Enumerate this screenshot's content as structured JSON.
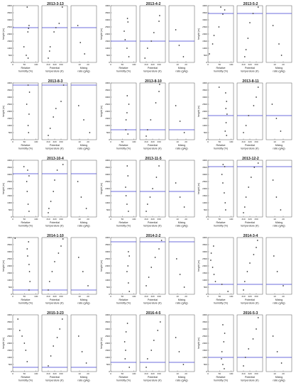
{
  "chart_data": {
    "type": "scatter",
    "colors": {
      "point": "#333333",
      "line": "#3b3bd1",
      "frame": "#555555"
    },
    "panels_per_date": [
      "Relative humidity (%)",
      "Potential temperature (K)",
      "Mixing ratio (g/kg)"
    ],
    "x_ticks": {
      "rh": {
        "values": [
          0,
          50,
          100
        ],
        "labels": [
          "0",
          "50",
          "100"
        ],
        "range": [
          0,
          110
        ]
      },
      "theta": {
        "values": [
          310,
          320,
          330
        ],
        "labels": [
          "310",
          "320",
          "330"
        ],
        "range": [
          300,
          340
        ]
      },
      "mr": {
        "values": [
          10,
          20
        ],
        "labels": [
          "10",
          "20"
        ],
        "range": [
          0,
          30
        ]
      }
    },
    "y_axis": {
      "label": "height (m)",
      "range": [
        0,
        4000
      ],
      "ticks": [
        0,
        500,
        1000,
        1500,
        2000,
        2500,
        3000,
        3500,
        4000
      ],
      "tick_labels": [
        "0",
        "500",
        "1000",
        "1500",
        "2000",
        "2500",
        "3000",
        "3500",
        "4000"
      ]
    },
    "x_titles": {
      "rh": [
        "Relative",
        "humidity (%)"
      ],
      "theta": [
        "Potential",
        "temperature (K)"
      ],
      "mr": [
        "Mixing",
        "ratio (g/kg)"
      ]
    },
    "dates": [
      {
        "date": "2013-3-13",
        "bl_height": 2450,
        "rh": [
          [
            62,
            3900
          ],
          [
            70,
            2600
          ],
          [
            68,
            2400
          ],
          [
            65,
            2150
          ],
          [
            48,
            1100
          ],
          [
            58,
            500
          ],
          [
            66,
            300
          ]
        ],
        "theta": [
          [
            332,
            3900
          ],
          [
            327,
            2750
          ],
          [
            322,
            2450
          ],
          [
            319,
            2150
          ],
          [
            313,
            1100
          ],
          [
            312,
            800
          ],
          [
            310,
            300
          ]
        ],
        "mr": [
          [
            8,
            2600
          ],
          [
            11,
            1400
          ],
          [
            16,
            600
          ]
        ]
      },
      {
        "date": "2013-4-2",
        "bl_height": 1500,
        "rh": [
          [
            72,
            3100
          ],
          [
            74,
            2850
          ],
          [
            58,
            2200
          ],
          [
            62,
            1600
          ],
          [
            70,
            1000
          ],
          [
            78,
            400
          ]
        ],
        "theta": [
          [
            331,
            3300
          ],
          [
            330,
            2900
          ],
          [
            322,
            2100
          ],
          [
            318,
            1500
          ],
          [
            312,
            1000
          ],
          [
            308,
            300
          ]
        ],
        "mr": [
          [
            8,
            2300
          ],
          [
            12,
            1200
          ],
          [
            17,
            400
          ]
        ]
      },
      {
        "date": "2013-5-2",
        "bl_height": 3450,
        "rh": [
          [
            55,
            3900
          ],
          [
            72,
            3700
          ],
          [
            64,
            3400
          ],
          [
            47,
            2500
          ],
          [
            26,
            1900
          ],
          [
            20,
            1300
          ],
          [
            6,
            600
          ]
        ],
        "theta": [
          [
            333,
            3900
          ],
          [
            325,
            3450
          ],
          [
            320,
            2800
          ],
          [
            317,
            1700
          ],
          [
            314,
            900
          ],
          [
            312,
            400
          ]
        ],
        "mr": [
          [
            8,
            2600
          ],
          [
            15,
            1300
          ],
          [
            18,
            500
          ]
        ]
      },
      {
        "date": "2013-8-3",
        "bl_height": 3850,
        "rh": [
          [
            66,
            3850
          ],
          [
            72,
            3350
          ],
          [
            60,
            2500
          ],
          [
            70,
            1800
          ],
          [
            66,
            1000
          ],
          [
            68,
            500
          ]
        ],
        "theta": [
          [
            334,
            3850
          ],
          [
            330,
            2700
          ],
          [
            322,
            2200
          ],
          [
            318,
            1600
          ],
          [
            313,
            800
          ],
          [
            310,
            300
          ]
        ],
        "mr": [
          [
            9,
            2400
          ],
          [
            15,
            1400
          ],
          [
            22,
            500
          ]
        ]
      },
      {
        "date": "2013-8-10",
        "bl_height": 700,
        "rh": [
          [
            71,
            3100
          ],
          [
            78,
            2500
          ],
          [
            70,
            1900
          ],
          [
            66,
            1400
          ],
          [
            65,
            700
          ],
          [
            74,
            400
          ]
        ],
        "theta": [
          [
            331,
            3900
          ],
          [
            330,
            3400
          ],
          [
            325,
            2600
          ],
          [
            317,
            1400
          ],
          [
            312,
            700
          ],
          [
            310,
            250
          ]
        ],
        "mr": [
          [
            8,
            2400
          ],
          [
            13,
            1300
          ],
          [
            18,
            500
          ]
        ]
      },
      {
        "date": "2013-8-11",
        "bl_height": 1700,
        "rh": [
          [
            48,
            3700
          ],
          [
            76,
            3300
          ],
          [
            80,
            2700
          ],
          [
            77,
            2200
          ],
          [
            82,
            1800
          ],
          [
            78,
            1200
          ],
          [
            74,
            600
          ],
          [
            80,
            300
          ]
        ],
        "theta": [
          [
            333,
            3700
          ],
          [
            330,
            3000
          ],
          [
            326,
            2400
          ],
          [
            318,
            1700
          ],
          [
            314,
            1000
          ],
          [
            310,
            500
          ]
        ],
        "mr": [
          [
            7,
            2500
          ],
          [
            12,
            1500
          ],
          [
            17,
            600
          ]
        ]
      },
      {
        "date": "2013-10-4",
        "bl_height": 3050,
        "rh": [
          [
            48,
            3550
          ],
          [
            64,
            3300
          ],
          [
            70,
            2900
          ],
          [
            60,
            2500
          ],
          [
            62,
            1800
          ],
          [
            66,
            900
          ],
          [
            70,
            400
          ]
        ],
        "theta": [
          [
            333,
            3700
          ],
          [
            324,
            3300
          ],
          [
            320,
            2600
          ],
          [
            318,
            1800
          ],
          [
            314,
            1100
          ],
          [
            311,
            600
          ],
          [
            310,
            300
          ]
        ],
        "mr": [
          [
            8,
            2500
          ],
          [
            12,
            1400
          ],
          [
            18,
            600
          ]
        ]
      },
      {
        "date": "2013-11-5",
        "bl_height": 1800,
        "rh": [
          [
            71,
            3600
          ],
          [
            74,
            2900
          ],
          [
            64,
            2100
          ],
          [
            66,
            1500
          ],
          [
            70,
            900
          ],
          [
            76,
            400
          ]
        ],
        "theta": [
          [
            330,
            3600
          ],
          [
            326,
            2800
          ],
          [
            320,
            2000
          ],
          [
            316,
            1400
          ],
          [
            312,
            900
          ],
          [
            310,
            400
          ]
        ],
        "mr": [
          [
            8,
            2400
          ],
          [
            13,
            1400
          ],
          [
            18,
            700
          ]
        ]
      },
      {
        "date": "2013-12-2",
        "bl_height": 3550,
        "rh": [
          [
            65,
            3700
          ],
          [
            72,
            3550
          ],
          [
            60,
            3000
          ],
          [
            64,
            2400
          ],
          [
            70,
            1700
          ],
          [
            74,
            1000
          ],
          [
            76,
            500
          ]
        ],
        "theta": [
          [
            333,
            3800
          ],
          [
            327,
            3500
          ],
          [
            322,
            2800
          ],
          [
            318,
            2100
          ],
          [
            314,
            1400
          ],
          [
            312,
            700
          ],
          [
            310,
            300
          ]
        ],
        "mr": [
          [
            8,
            2600
          ],
          [
            12,
            1400
          ],
          [
            17,
            500
          ]
        ]
      },
      {
        "date": "2014-1-10",
        "bl_height": 300,
        "rh": [
          [
            10,
            3950
          ],
          [
            68,
            3700
          ],
          [
            62,
            3200
          ],
          [
            64,
            2700
          ],
          [
            70,
            2100
          ],
          [
            72,
            1600
          ],
          [
            74,
            900
          ],
          [
            70,
            300
          ]
        ],
        "theta": [
          [
            333,
            3900
          ],
          [
            330,
            3400
          ],
          [
            326,
            2900
          ],
          [
            320,
            2300
          ],
          [
            316,
            1600
          ],
          [
            312,
            900
          ],
          [
            310,
            300
          ]
        ],
        "mr": [
          [
            9,
            2600
          ],
          [
            14,
            1600
          ],
          [
            20,
            600
          ]
        ]
      },
      {
        "date": "2014-2-2",
        "bl_height": 3700,
        "rh": [
          [
            76,
            3000
          ],
          [
            80,
            2700
          ],
          [
            74,
            2000
          ],
          [
            70,
            1600
          ],
          [
            76,
            800
          ],
          [
            80,
            200
          ]
        ],
        "theta": [
          [
            334,
            3800
          ],
          [
            330,
            3200
          ],
          [
            324,
            2600
          ],
          [
            318,
            1900
          ],
          [
            314,
            1200
          ],
          [
            310,
            600
          ]
        ],
        "mr": [
          [
            9,
            2500
          ],
          [
            13,
            1400
          ],
          [
            18,
            500
          ]
        ]
      },
      {
        "date": "2014-3-4",
        "bl_height": 700,
        "rh": [
          [
            24,
            3400
          ],
          [
            14,
            2900
          ],
          [
            12,
            2400
          ],
          [
            20,
            1900
          ],
          [
            26,
            1400
          ],
          [
            32,
            900
          ],
          [
            60,
            700
          ],
          [
            86,
            200
          ]
        ],
        "theta": [
          [
            332,
            3800
          ],
          [
            330,
            3300
          ],
          [
            326,
            2800
          ],
          [
            320,
            2200
          ],
          [
            316,
            1600
          ],
          [
            312,
            900
          ],
          [
            310,
            300
          ]
        ],
        "mr": [
          [
            9,
            2700
          ],
          [
            13,
            1600
          ],
          [
            20,
            600
          ]
        ]
      },
      {
        "date": "2015-3-23",
        "bl_height": 300,
        "rh": [
          [
            22,
            3700
          ],
          [
            30,
            2900
          ],
          [
            40,
            2500
          ],
          [
            50,
            2000
          ],
          [
            56,
            1500
          ],
          [
            62,
            700
          ]
        ],
        "theta": [
          [
            332,
            3700
          ],
          [
            328,
            3000
          ],
          [
            324,
            2400
          ],
          [
            318,
            1800
          ],
          [
            314,
            1100
          ],
          [
            310,
            400
          ]
        ],
        "mr": [
          [
            9,
            2500
          ],
          [
            13,
            1400
          ],
          [
            18,
            600
          ]
        ]
      },
      {
        "date": "2016-4-5",
        "bl_height": 650,
        "rh": [
          [
            72,
            3400
          ],
          [
            66,
            2800
          ],
          [
            60,
            2100
          ],
          [
            64,
            1500
          ],
          [
            62,
            900
          ],
          [
            80,
            300
          ]
        ],
        "theta": [
          [
            332,
            3500
          ],
          [
            328,
            2900
          ],
          [
            322,
            2200
          ],
          [
            318,
            1500
          ],
          [
            312,
            900
          ],
          [
            310,
            300
          ]
        ],
        "mr": [
          [
            8,
            2400
          ],
          [
            12,
            1400
          ],
          [
            17,
            500
          ]
        ]
      },
      {
        "date": "2016-5-3",
        "bl_height": 1000,
        "rh": [
          [
            64,
            3300
          ],
          [
            72,
            2700
          ],
          [
            68,
            2100
          ],
          [
            60,
            1400
          ],
          [
            58,
            900
          ],
          [
            64,
            500
          ],
          [
            70,
            200
          ]
        ],
        "theta": [
          [
            333,
            3800
          ],
          [
            330,
            3000
          ],
          [
            325,
            2300
          ],
          [
            318,
            1600
          ],
          [
            313,
            1000
          ],
          [
            310,
            400
          ]
        ],
        "mr": [
          [
            8,
            2500
          ],
          [
            13,
            1400
          ],
          [
            18,
            600
          ]
        ]
      }
    ]
  }
}
